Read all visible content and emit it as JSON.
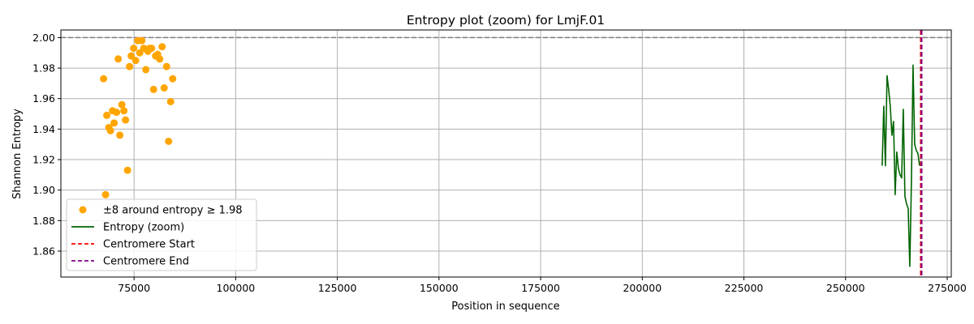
{
  "chart_data": {
    "type": "scatter+line",
    "title": "Entropy plot (zoom) for LmjF.01",
    "xlabel": "Position in sequence",
    "ylabel": "Shannon Entropy",
    "xlim": [
      57000,
      276000
    ],
    "ylim": [
      1.843,
      2.005
    ],
    "xticks": [
      75000,
      100000,
      125000,
      150000,
      175000,
      200000,
      225000,
      250000,
      275000
    ],
    "yticks": [
      1.86,
      1.88,
      1.9,
      1.92,
      1.94,
      1.96,
      1.98,
      2.0
    ],
    "grid": true,
    "legend_position": "lower-left",
    "reference_line": {
      "y": 2.0,
      "color": "#808080",
      "style": "dashed"
    },
    "colors": {
      "scatter": "#FFA500",
      "line": "#006400",
      "centromere_start": "#FF0000",
      "centromere_end": "#800080",
      "grid": "#b0b0b0"
    },
    "series": [
      {
        "name": "±8 around entropy ≥ 1.98",
        "kind": "scatter",
        "points": [
          [
            67500,
            1.973
          ],
          [
            68000,
            1.897
          ],
          [
            68300,
            1.949
          ],
          [
            68800,
            1.941
          ],
          [
            69200,
            1.939
          ],
          [
            69700,
            1.952
          ],
          [
            70100,
            1.944
          ],
          [
            70700,
            1.951
          ],
          [
            71100,
            1.986
          ],
          [
            71500,
            1.936
          ],
          [
            72000,
            1.956
          ],
          [
            72500,
            1.952
          ],
          [
            72900,
            1.946
          ],
          [
            73400,
            1.913
          ],
          [
            73900,
            1.981
          ],
          [
            74300,
            1.988
          ],
          [
            74900,
            1.993
          ],
          [
            75400,
            1.985
          ],
          [
            75900,
            1.998
          ],
          [
            76400,
            1.99
          ],
          [
            76900,
            1.998
          ],
          [
            77400,
            1.993
          ],
          [
            77900,
            1.979
          ],
          [
            78400,
            1.991
          ],
          [
            78900,
            1.993
          ],
          [
            79300,
            1.993
          ],
          [
            79800,
            1.966
          ],
          [
            80300,
            1.988
          ],
          [
            80800,
            1.989
          ],
          [
            81300,
            1.986
          ],
          [
            81900,
            1.994
          ],
          [
            82400,
            1.967
          ],
          [
            83000,
            1.981
          ],
          [
            83500,
            1.932
          ],
          [
            84000,
            1.958
          ],
          [
            84500,
            1.973
          ]
        ]
      },
      {
        "name": "Entropy (zoom)",
        "kind": "line",
        "points": [
          [
            259000,
            1.916
          ],
          [
            259400,
            1.955
          ],
          [
            259800,
            1.916
          ],
          [
            260200,
            1.975
          ],
          [
            260600,
            1.966
          ],
          [
            261000,
            1.955
          ],
          [
            261400,
            1.936
          ],
          [
            261800,
            1.945
          ],
          [
            262200,
            1.897
          ],
          [
            262600,
            1.925
          ],
          [
            263000,
            1.914
          ],
          [
            263400,
            1.91
          ],
          [
            263800,
            1.908
          ],
          [
            264200,
            1.953
          ],
          [
            264600,
            1.896
          ],
          [
            265000,
            1.891
          ],
          [
            265400,
            1.888
          ],
          [
            265800,
            1.85
          ],
          [
            266200,
            1.906
          ],
          [
            266600,
            1.982
          ],
          [
            267000,
            1.93
          ],
          [
            267400,
            1.926
          ],
          [
            267800,
            1.924
          ],
          [
            268200,
            1.916
          ]
        ]
      },
      {
        "name": "Centromere Start",
        "kind": "vline",
        "x": 268500
      },
      {
        "name": "Centromere End",
        "kind": "vline",
        "x": 268700
      }
    ]
  }
}
